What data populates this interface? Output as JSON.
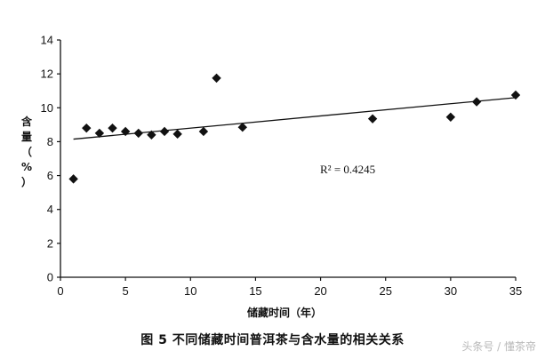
{
  "chart_data": {
    "type": "scatter",
    "xlabel": "储藏时间（年）",
    "ylabel": "含量（%）",
    "xlim": [
      0,
      35
    ],
    "ylim": [
      0,
      14
    ],
    "xticks": [
      "0",
      "5",
      "10",
      "15",
      "20",
      "25",
      "30",
      "35"
    ],
    "yticks": [
      "0",
      "2",
      "4",
      "6",
      "8",
      "10",
      "12",
      "14"
    ],
    "grid": false,
    "marker": "diamond",
    "points": [
      {
        "x": 1,
        "y": 5.8
      },
      {
        "x": 2,
        "y": 8.8
      },
      {
        "x": 3,
        "y": 8.5
      },
      {
        "x": 4,
        "y": 8.8
      },
      {
        "x": 5,
        "y": 8.6
      },
      {
        "x": 6,
        "y": 8.5
      },
      {
        "x": 7,
        "y": 8.4
      },
      {
        "x": 8,
        "y": 8.6
      },
      {
        "x": 9,
        "y": 8.45
      },
      {
        "x": 11,
        "y": 8.6
      },
      {
        "x": 12,
        "y": 11.75
      },
      {
        "x": 14,
        "y": 8.85
      },
      {
        "x": 24,
        "y": 9.35
      },
      {
        "x": 30,
        "y": 9.45
      },
      {
        "x": 32,
        "y": 10.35
      },
      {
        "x": 35,
        "y": 10.75
      }
    ],
    "trendline": {
      "type": "linear",
      "from": {
        "x": 1,
        "y": 8.15
      },
      "to": {
        "x": 35,
        "y": 10.6
      }
    },
    "annotation": "R² = 0.4245",
    "title": "图 5  不同储藏时间普洱茶与含水量的相关关系"
  },
  "watermark": "头条号 / 懂茶帝",
  "colors": {
    "marker": "#111111",
    "axis": "#111111",
    "trendline": "#111111",
    "watermark": "#b8b8b8"
  }
}
